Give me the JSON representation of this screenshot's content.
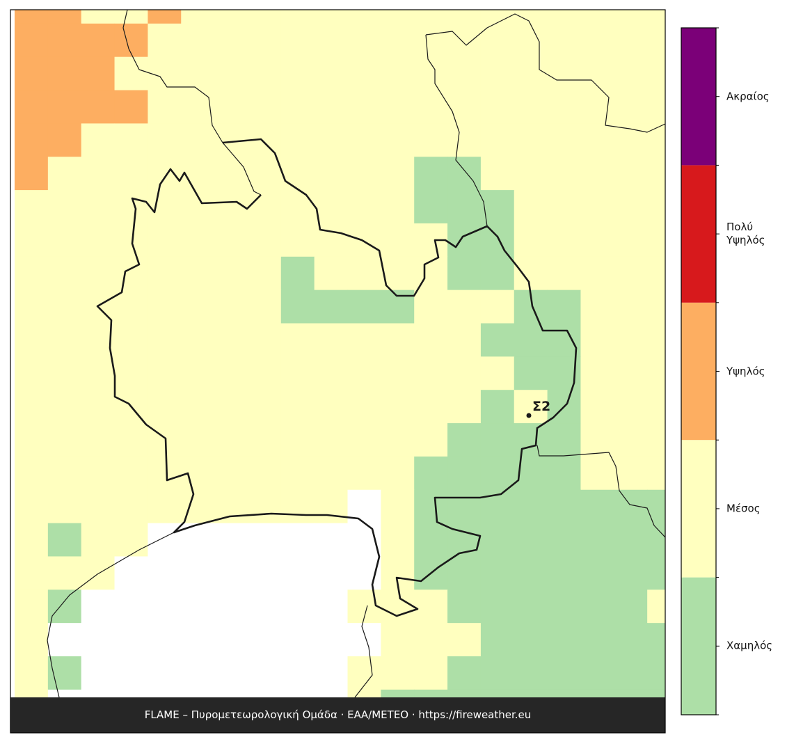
{
  "map": {
    "levels": [
      {
        "label": "Χαμηλός",
        "color": "#addfa7"
      },
      {
        "label": "Μέσος",
        "color": "#ffffbf"
      },
      {
        "label": "Υψηλός",
        "color": "#fdae61"
      },
      {
        "label": "Πολύ\nΥψηλός",
        "color": "#d7191c"
      },
      {
        "label": "Ακραίος",
        "color": "#7b0078"
      }
    ],
    "grid": [
      [
        3,
        3,
        2,
        2,
        3,
        2,
        2,
        2,
        2,
        2,
        2,
        2,
        2,
        2,
        2,
        2,
        2,
        2,
        2,
        2
      ],
      [
        3,
        3,
        3,
        3,
        2,
        2,
        2,
        2,
        2,
        2,
        2,
        2,
        2,
        2,
        2,
        2,
        2,
        2,
        2,
        2
      ],
      [
        3,
        3,
        3,
        2,
        2,
        2,
        2,
        2,
        2,
        2,
        2,
        2,
        2,
        2,
        2,
        2,
        2,
        2,
        2,
        2
      ],
      [
        3,
        3,
        3,
        3,
        2,
        2,
        2,
        2,
        2,
        2,
        2,
        2,
        2,
        2,
        2,
        2,
        2,
        2,
        2,
        2
      ],
      [
        3,
        3,
        2,
        2,
        2,
        2,
        2,
        2,
        2,
        2,
        2,
        2,
        2,
        2,
        2,
        2,
        2,
        2,
        2,
        2
      ],
      [
        3,
        2,
        2,
        2,
        2,
        2,
        2,
        2,
        2,
        2,
        2,
        2,
        1,
        1,
        2,
        2,
        2,
        2,
        2,
        2
      ],
      [
        2,
        2,
        2,
        2,
        2,
        2,
        2,
        2,
        2,
        2,
        2,
        2,
        1,
        1,
        1,
        2,
        2,
        2,
        2,
        2
      ],
      [
        2,
        2,
        2,
        2,
        2,
        2,
        2,
        2,
        2,
        2,
        2,
        2,
        2,
        1,
        1,
        2,
        2,
        2,
        2,
        2
      ],
      [
        2,
        2,
        2,
        2,
        2,
        2,
        2,
        2,
        1,
        2,
        2,
        2,
        2,
        1,
        1,
        2,
        2,
        2,
        2,
        2
      ],
      [
        2,
        2,
        2,
        2,
        2,
        2,
        2,
        2,
        1,
        1,
        1,
        1,
        2,
        2,
        2,
        1,
        1,
        2,
        2,
        2
      ],
      [
        2,
        2,
        2,
        2,
        2,
        2,
        2,
        2,
        2,
        2,
        2,
        2,
        2,
        2,
        1,
        1,
        1,
        2,
        2,
        2
      ],
      [
        2,
        2,
        2,
        2,
        2,
        2,
        2,
        2,
        2,
        2,
        2,
        2,
        2,
        2,
        2,
        1,
        1,
        2,
        2,
        2
      ],
      [
        2,
        2,
        2,
        2,
        2,
        2,
        2,
        2,
        2,
        2,
        2,
        2,
        2,
        2,
        1,
        2,
        1,
        2,
        2,
        2
      ],
      [
        2,
        2,
        2,
        2,
        2,
        2,
        2,
        2,
        2,
        2,
        2,
        2,
        2,
        1,
        1,
        1,
        1,
        2,
        2,
        2
      ],
      [
        2,
        2,
        2,
        2,
        2,
        2,
        2,
        2,
        2,
        2,
        2,
        2,
        1,
        1,
        1,
        1,
        1,
        2,
        2,
        2
      ],
      [
        2,
        2,
        2,
        2,
        2,
        2,
        2,
        2,
        2,
        2,
        0,
        2,
        1,
        1,
        1,
        1,
        1,
        1,
        1,
        1
      ],
      [
        2,
        1,
        2,
        2,
        0,
        0,
        0,
        0,
        0,
        0,
        0,
        2,
        1,
        1,
        1,
        1,
        1,
        1,
        1,
        1
      ],
      [
        2,
        2,
        2,
        0,
        0,
        0,
        0,
        0,
        0,
        0,
        0,
        2,
        1,
        1,
        1,
        1,
        1,
        1,
        1,
        1
      ],
      [
        2,
        1,
        0,
        0,
        0,
        0,
        0,
        0,
        0,
        0,
        2,
        2,
        2,
        1,
        1,
        1,
        1,
        1,
        1,
        2
      ],
      [
        2,
        0,
        0,
        0,
        0,
        0,
        0,
        0,
        0,
        0,
        0,
        2,
        2,
        2,
        1,
        1,
        1,
        1,
        1,
        1
      ],
      [
        2,
        1,
        0,
        0,
        0,
        0,
        0,
        0,
        0,
        0,
        2,
        2,
        2,
        1,
        1,
        1,
        1,
        1,
        1,
        1
      ],
      [
        2,
        0,
        0,
        0,
        0,
        0,
        0,
        0,
        0,
        0,
        2,
        1,
        1,
        1,
        1,
        1,
        1,
        1,
        1,
        1
      ]
    ],
    "station": "Σ2",
    "footer": "FLAME – Πυρομετεωρολογική Ομάδα · ΕΑΑ/METEO · https://fireweather.eu"
  }
}
